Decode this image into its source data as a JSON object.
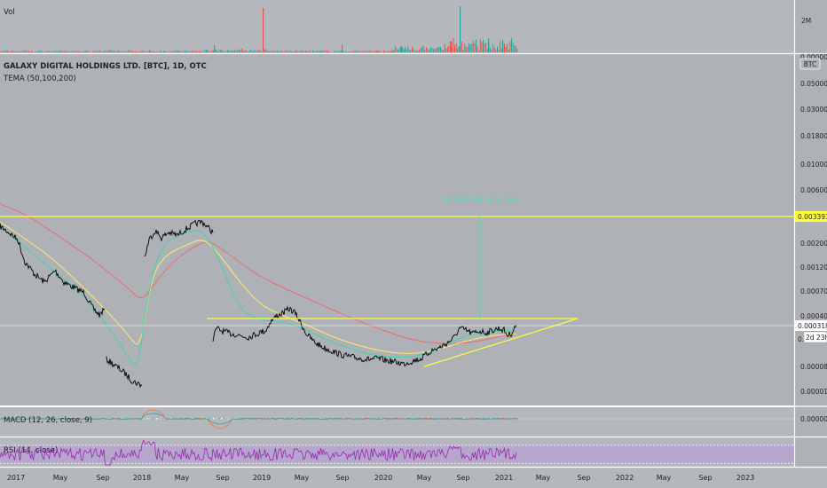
{
  "header": {
    "vol_label": "Vol",
    "symbol_title": "GALAXY DIGITAL HOLDINGS LTD. [BTC], 1D, OTC",
    "indicator_title": "TEMA (50,100,200)",
    "currency_badge": "BTC",
    "countdown": "2d 23h",
    "vol_axis_label": "2M",
    "vol_axis_label_low": "0.000000"
  },
  "panes": {
    "macd_title": "MACD (12, 26, close, 9)",
    "rsi_title": "RSI (14, close)",
    "macd_axis_label": "0.000000"
  },
  "annotations": {
    "measure_label": "0.00009 (61.19%) 629",
    "resistance_price": "0.003393",
    "last_price": "0.000318",
    "truncated_label": "0."
  },
  "colors": {
    "background": "#ffffff",
    "upper_bg": "#aeb2b7",
    "lower_bg": "#b4b8bc",
    "yellow": "#ffff3a",
    "price_line": "#000000",
    "tema_green": "#3fd4ad",
    "tema_yellow": "#ffe86a",
    "tema_red": "#ee6a6e",
    "rsi_fill": "#b895d8",
    "rsi_line": "#9c27b0",
    "vol_up": "#26a69a",
    "vol_down": "#ef5350",
    "measure": "#4fd8c0"
  },
  "chart_data": {
    "type": "line",
    "title": "GALAXY DIGITAL HOLDINGS LTD. [BTC], 1D, OTC",
    "y_scale": "log",
    "y_tick_labels": [
      "0.050000",
      "0.030000",
      "0.018000",
      "0.010000",
      "0.006000",
      "0.003393",
      "0.002000",
      "0.001200",
      "0.000700",
      "0.000400",
      "0.000318",
      "0.000080",
      "0.000010"
    ],
    "x_tick_labels": [
      "2017",
      "May",
      "Sep",
      "2018",
      "May",
      "Sep",
      "2019",
      "May",
      "Sep",
      "2020",
      "May",
      "Sep",
      "2021",
      "May",
      "Sep",
      "2022",
      "May",
      "Sep",
      "2023"
    ],
    "series": [
      {
        "name": "TEMA (50,100,200)"
      }
    ],
    "horizontal_lines": [
      0.003393
    ],
    "last_value": 0.000318,
    "grid": false,
    "legend": "top-left"
  }
}
